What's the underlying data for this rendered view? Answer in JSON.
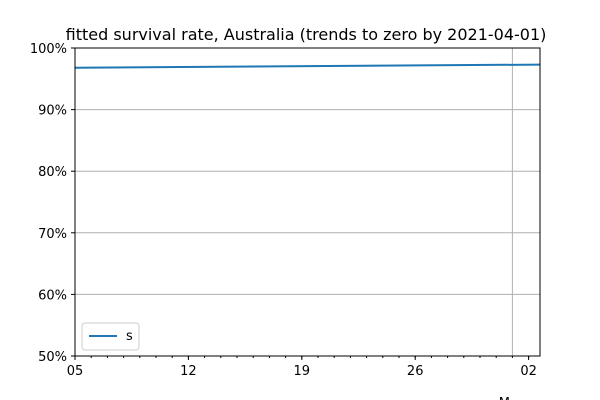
{
  "chart_data": {
    "type": "line",
    "title": "fitted survival rate, Australia (trends to zero by 2021-04-01)",
    "xlabel": "",
    "ylabel": "",
    "x_tick_labels": [
      "05",
      "12",
      "19",
      "26",
      "02"
    ],
    "x_month_label_partial": "M",
    "y_tick_labels": [
      "50%",
      "60%",
      "70%",
      "80%",
      "90%",
      "100%"
    ],
    "ylim": [
      0.5,
      1.0
    ],
    "grid": "horizontal-major-and-vertical-month-boundary",
    "legend_position": "lower-left",
    "colors": {
      "series": "#1f77b4",
      "grid": "#b0b0b0"
    },
    "series": [
      {
        "name": "s",
        "x_days_from_first_tick": [
          -0.3,
          31.2
        ],
        "values": [
          0.968,
          0.973
        ]
      }
    ]
  }
}
